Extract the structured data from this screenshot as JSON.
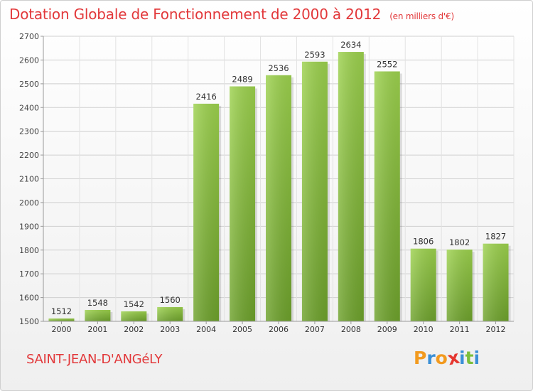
{
  "header": {
    "title": "Dotation Globale de Fonctionnement de 2000 à 2012",
    "unit": "(en milliers d'€)"
  },
  "commune": "SAINT-JEAN-D'ANGéLY",
  "brand": {
    "letters": [
      "P",
      "r",
      "o",
      "x",
      "i",
      "t",
      "i"
    ],
    "colors": [
      "#f29a1e",
      "#3a8fd6",
      "#f29a1e",
      "#e5362f",
      "#3a8fd6",
      "#7cbf3a",
      "#3a8fd6"
    ]
  },
  "chart_data": {
    "type": "bar",
    "title": "Dotation Globale de Fonctionnement de 2000 à 2012",
    "categories": [
      "2000",
      "2001",
      "2002",
      "2003",
      "2004",
      "2005",
      "2006",
      "2007",
      "2008",
      "2009",
      "2010",
      "2011",
      "2012"
    ],
    "values": [
      1512,
      1548,
      1542,
      1560,
      2416,
      2489,
      2536,
      2593,
      2634,
      2552,
      1806,
      1802,
      1827
    ],
    "ylim": [
      1500,
      2700
    ],
    "yticks": [
      1500,
      1600,
      1700,
      1800,
      1900,
      2000,
      2100,
      2200,
      2300,
      2400,
      2500,
      2600,
      2700
    ],
    "grid": true,
    "bar_color": "#8cc43f",
    "legend": "none"
  }
}
